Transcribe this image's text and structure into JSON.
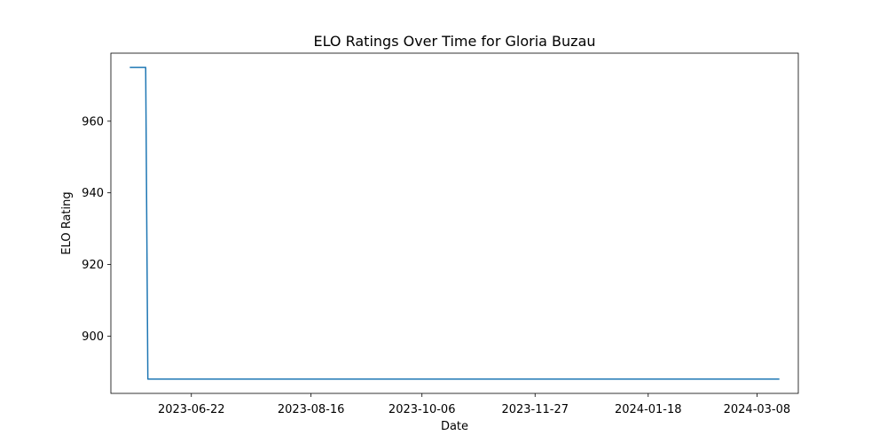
{
  "chart_data": {
    "type": "line",
    "title": "ELO Ratings Over Time for Gloria Buzau",
    "xlabel": "Date",
    "ylabel": "ELO Rating",
    "xlim": [
      "2023-05-16",
      "2024-03-27"
    ],
    "ylim": [
      884,
      979
    ],
    "x_ticks": [
      "2023-06-22",
      "2023-08-16",
      "2023-10-06",
      "2023-11-27",
      "2024-01-18",
      "2024-03-08"
    ],
    "y_ticks": [
      900,
      920,
      940,
      960
    ],
    "grid": false,
    "legend": "none",
    "series": [
      {
        "color": "#1f77b4",
        "points": [
          {
            "date": "2023-05-25",
            "value": 975
          },
          {
            "date": "2023-06-01",
            "value": 975
          },
          {
            "date": "2023-06-02",
            "value": 888
          },
          {
            "date": "2024-03-18",
            "value": 888
          }
        ]
      }
    ]
  }
}
